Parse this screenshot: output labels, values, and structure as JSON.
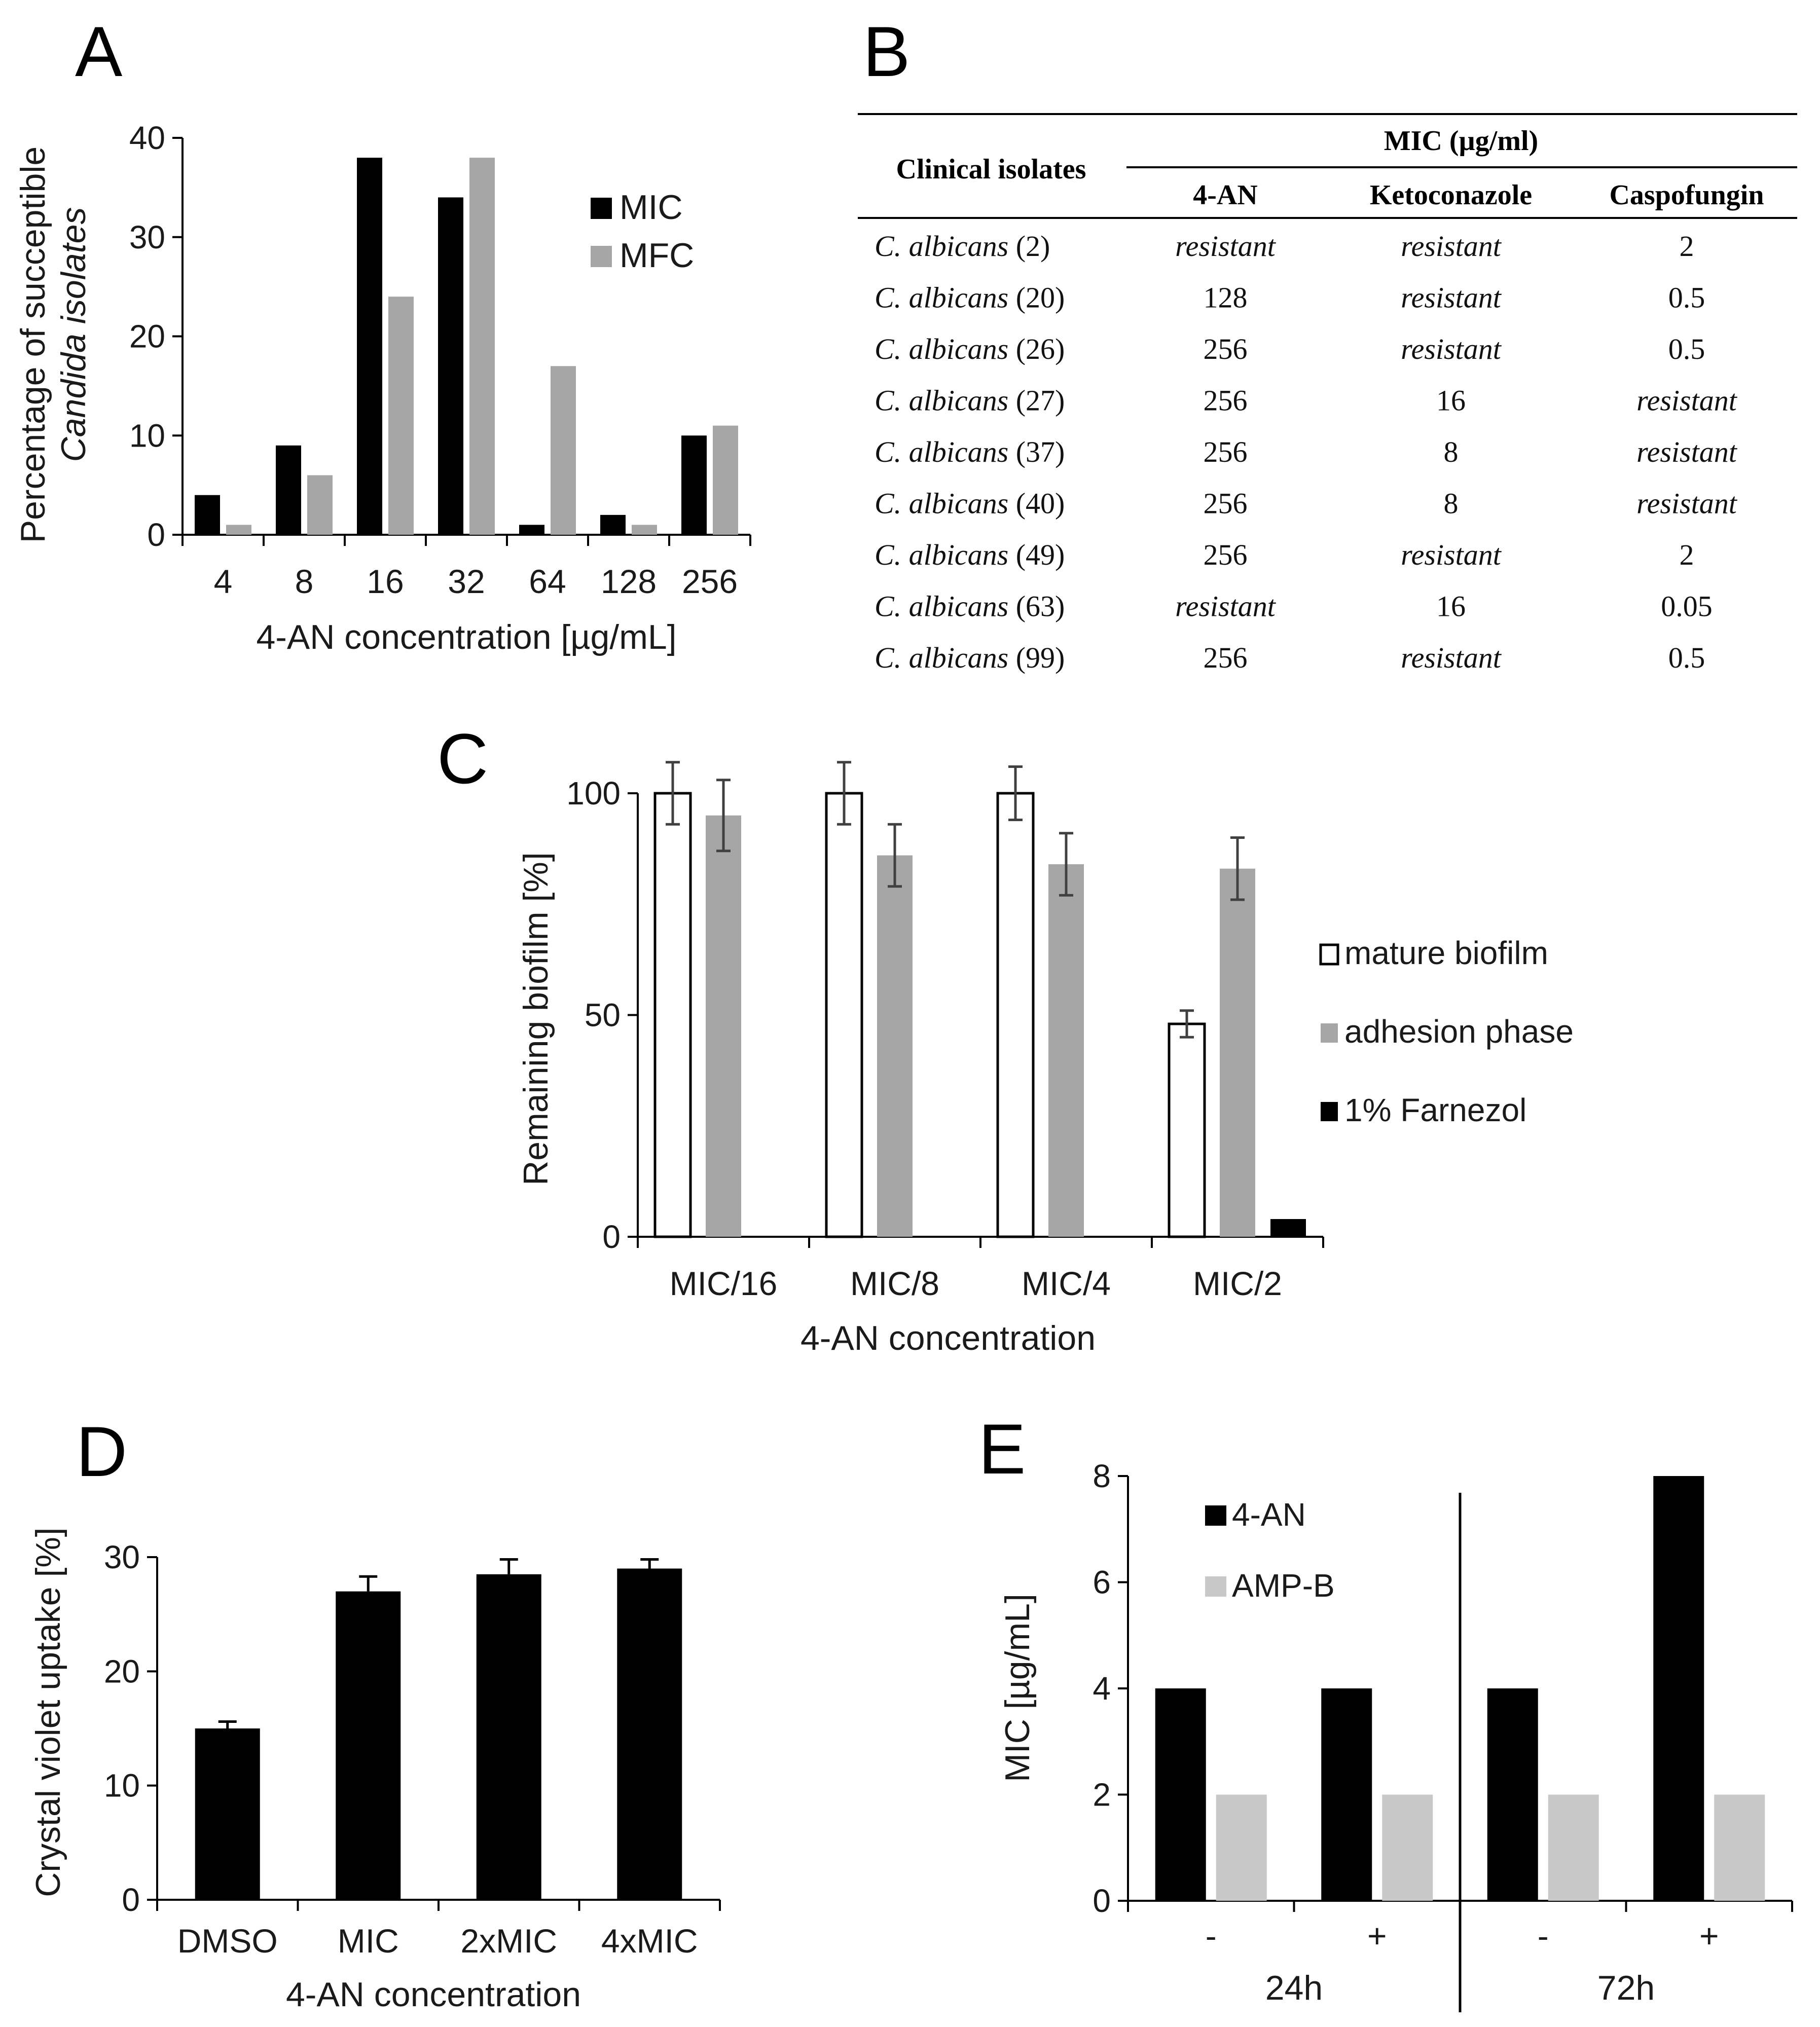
{
  "chart_data": [
    {
      "panel": "A",
      "type": "bar",
      "categories": [
        "4",
        "8",
        "16",
        "32",
        "64",
        "128",
        "256"
      ],
      "series": [
        {
          "name": "MIC",
          "color": "#000000",
          "values": [
            4,
            9,
            38,
            34,
            1,
            2,
            10
          ]
        },
        {
          "name": "MFC",
          "color": "#a6a6a6",
          "values": [
            1,
            6,
            24,
            38,
            17,
            1,
            11
          ]
        }
      ],
      "ylabel_line1": "Percentage of succeptible",
      "ylabel_line2": "Candida isolates",
      "xlabel": "4-AN concentration [µg/mL]",
      "ylim": [
        0,
        40
      ],
      "yticks": [
        "0",
        "10",
        "20",
        "30",
        "40"
      ],
      "legend": "top-right"
    },
    {
      "panel": "C",
      "type": "bar",
      "categories": [
        "MIC/16",
        "MIC/8",
        "MIC/4",
        "MIC/2"
      ],
      "series": [
        {
          "name": "mature biofilm",
          "color": "#ffffff",
          "values": [
            100,
            100,
            100,
            48
          ],
          "errors": [
            7,
            7,
            6,
            3
          ]
        },
        {
          "name": "adhesion phase",
          "color": "#a6a6a6",
          "values": [
            95,
            86,
            84,
            83
          ],
          "errors": [
            8,
            7,
            7,
            7
          ]
        },
        {
          "name": "1% Farnezol",
          "color": "#000000",
          "values": [
            null,
            null,
            null,
            4
          ]
        }
      ],
      "ylabel": "Remaining biofilm [%]",
      "xlabel": "4-AN concentration",
      "ylim": [
        0,
        100
      ],
      "yticks": [
        "0",
        "50",
        "100"
      ],
      "legend": "right"
    },
    {
      "panel": "D",
      "type": "bar",
      "categories": [
        "DMSO",
        "MIC",
        "2xMIC",
        "4xMIC"
      ],
      "series": [
        {
          "name": "Crystal violet uptake",
          "color": "#000000",
          "values": [
            15,
            27,
            28.5,
            29
          ],
          "errors": [
            0.6,
            1.3,
            1.3,
            0.8
          ]
        }
      ],
      "ylabel": "Crystal violet uptake [%]",
      "xlabel": "4-AN concentration",
      "ylim": [
        0,
        30
      ],
      "yticks": [
        "0",
        "10",
        "20",
        "30"
      ]
    },
    {
      "panel": "E",
      "type": "bar",
      "categories": [
        "-",
        "+",
        "-",
        "+"
      ],
      "groups": [
        "24h",
        "72h"
      ],
      "series": [
        {
          "name": "4-AN",
          "color": "#000000",
          "values": [
            4,
            4,
            4,
            8
          ]
        },
        {
          "name": "AMP-B",
          "color": "#c8c8c8",
          "values": [
            2,
            2,
            2,
            2
          ]
        }
      ],
      "ylabel": "MIC [µg/mL]",
      "ylim": [
        0,
        8
      ],
      "yticks": [
        "0",
        "2",
        "4",
        "6",
        "8"
      ],
      "legend": "top-left"
    }
  ],
  "labels": {
    "A": "A",
    "B": "B",
    "C": "C",
    "D": "D",
    "E": "E"
  },
  "table": {
    "row_header": "Clinical isolates",
    "group_header": "MIC (µg/ml)",
    "columns": [
      "4-AN",
      "Ketoconazole",
      "Caspofungin"
    ],
    "rows": [
      {
        "species": "C. albicans",
        "id": "(2)",
        "values": [
          "resistant",
          "resistant",
          "2"
        ]
      },
      {
        "species": "C. albicans",
        "id": "(20)",
        "values": [
          "128",
          "resistant",
          "0.5"
        ]
      },
      {
        "species": "C. albicans",
        "id": "(26)",
        "values": [
          "256",
          "resistant",
          "0.5"
        ]
      },
      {
        "species": "C. albicans",
        "id": "(27)",
        "values": [
          "256",
          "16",
          "resistant"
        ]
      },
      {
        "species": "C. albicans",
        "id": "(37)",
        "values": [
          "256",
          "8",
          "resistant"
        ]
      },
      {
        "species": "C. albicans",
        "id": "(40)",
        "values": [
          "256",
          "8",
          "resistant"
        ]
      },
      {
        "species": "C. albicans",
        "id": "(49)",
        "values": [
          "256",
          "resistant",
          "2"
        ]
      },
      {
        "species": "C. albicans",
        "id": "(63)",
        "values": [
          "resistant",
          "16",
          "0.05"
        ]
      },
      {
        "species": "C. albicans",
        "id": "(99)",
        "values": [
          "256",
          "resistant",
          "0.5"
        ]
      }
    ]
  }
}
